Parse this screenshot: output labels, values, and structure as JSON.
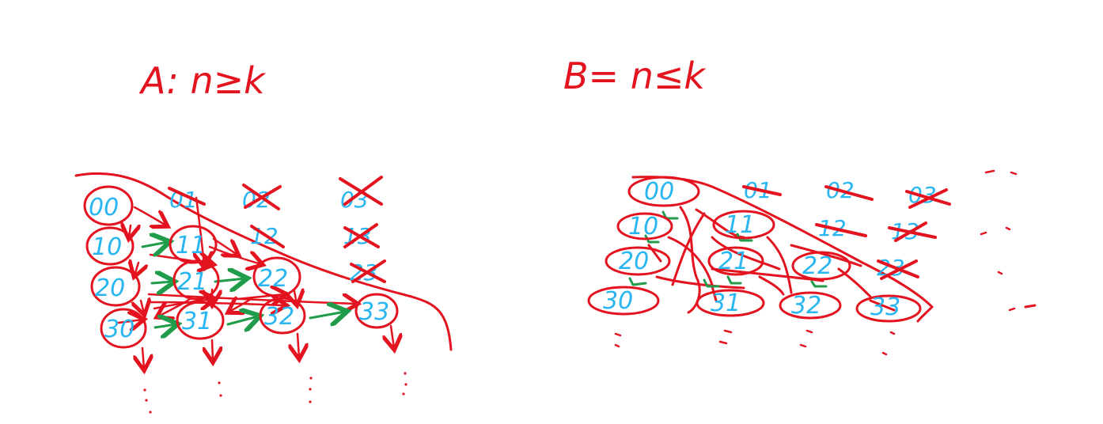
{
  "panel_a": {
    "title": "A: n≥k",
    "nodes": [
      "00",
      "10",
      "11",
      "20",
      "21",
      "22",
      "30",
      "31",
      "32",
      "33"
    ],
    "crossed": [
      "01",
      "02",
      "03",
      "12",
      "13",
      "23"
    ]
  },
  "panel_b": {
    "title": "B= n≤k",
    "nodes": [
      "00",
      "10",
      "11",
      "20",
      "21",
      "22",
      "30",
      "31",
      "32",
      "33"
    ],
    "crossed": [
      "01",
      "02",
      "03",
      "12",
      "13",
      "23"
    ]
  },
  "colors": {
    "ink_red": "#e3131f",
    "ink_blue": "#29b6f0",
    "ink_green": "#1f9d4a"
  }
}
